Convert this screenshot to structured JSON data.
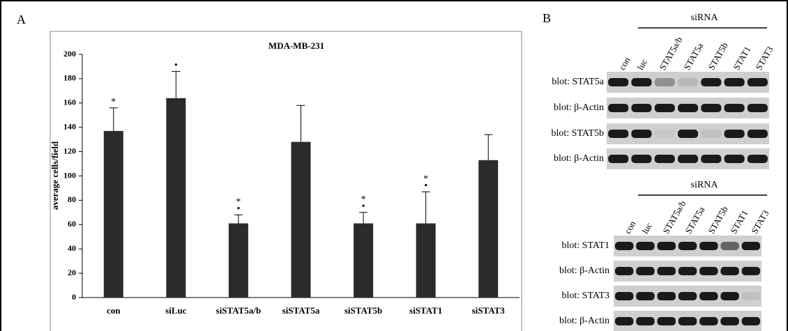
{
  "chart_data": {
    "type": "bar",
    "panel_label": "A",
    "title": "MDA-MB-231",
    "y_label": "average cells/field",
    "categories": [
      "con",
      "siLuc",
      "siSTAT5a/b",
      "siSTAT5a",
      "siSTAT5b",
      "siSTAT1",
      "siSTAT3"
    ],
    "values": [
      137,
      164,
      61,
      128,
      61,
      61,
      113
    ],
    "errors": [
      19,
      22,
      7,
      30,
      9,
      26,
      21
    ],
    "annotations": [
      [
        "*"
      ],
      [
        "•"
      ],
      [
        "*",
        "•"
      ],
      [],
      [
        "*",
        "•"
      ],
      [
        "*",
        "•"
      ],
      []
    ],
    "color": "#2b2b2b",
    "ylim": [
      0,
      200
    ],
    "yticks": [
      0,
      20,
      40,
      60,
      80,
      100,
      120,
      140,
      160,
      180,
      200
    ],
    "grid": false
  },
  "panel_b": {
    "panel_label": "B",
    "groups": [
      {
        "header": "siRNA",
        "lanes": [
          "con",
          "luc",
          "STAT5a/b",
          "STAT5a",
          "STAT5b",
          "STAT1",
          "STAT3"
        ],
        "blots": [
          "blot: STAT5a",
          "blot: β-Actin",
          "blot: STAT5b",
          "blot: β-Actin"
        ]
      },
      {
        "header": "siRNA",
        "lanes": [
          "con",
          "luc",
          "STAT5a/b",
          "STAT5a",
          "STAT5b",
          "STAT1",
          "STAT3"
        ],
        "blots": [
          "blot: STAT1",
          "blot: β-Actin",
          "blot: STAT3",
          "blot: β-Actin"
        ]
      }
    ]
  }
}
